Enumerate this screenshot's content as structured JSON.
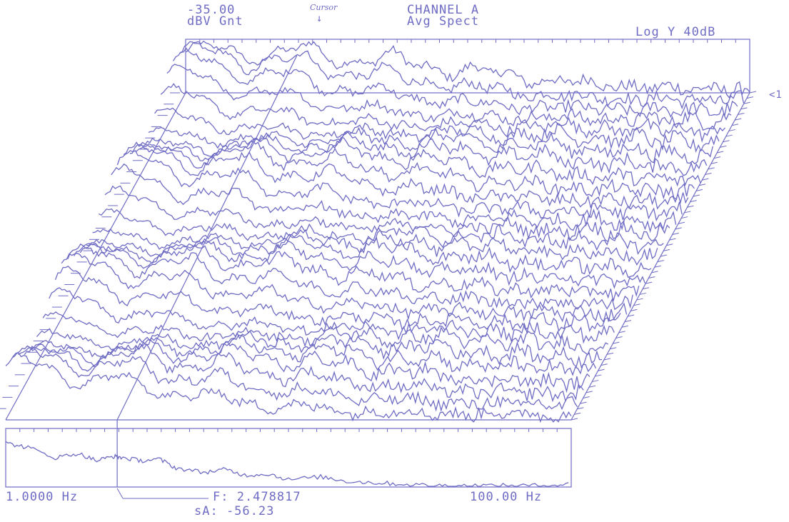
{
  "header": {
    "ref_level": "-35.00",
    "ref_units": "dBV Gnt",
    "cursor_note": "Cursor",
    "channel": "CHANNEL A",
    "measurement": "Avg Spect",
    "scale": "Log Y 40dB",
    "side_marker": "<1"
  },
  "footer": {
    "start_freq": "1.0000 Hz",
    "stop_freq": "100.00 Hz",
    "cursor_freq": "F: 2.478817",
    "cursor_value": "sA: -56.23"
  },
  "colors": {
    "trace": "#6f6cc4",
    "frame": "#6f6cc4",
    "paper": "#ffffff"
  },
  "chart_data": {
    "type": "line",
    "title": "CHANNEL A Avg Spect",
    "x_scale": "log",
    "xlim_hz": [
      1.0,
      100.0
    ],
    "y_scale_db": 40,
    "reference_dbv": -35.0,
    "cursor": {
      "freq_hz": 2.478817,
      "value_dbv": -56.23
    },
    "waterfall_traces": 30,
    "front_spectrum": {
      "freq_hz": [
        1.0,
        1.2,
        1.5,
        1.8,
        2.1,
        2.4,
        2.6,
        3.0,
        3.5,
        4.0,
        5.0,
        6.0,
        7.0,
        8.5,
        10,
        13,
        16,
        20,
        25,
        32,
        40,
        50,
        63,
        80,
        100
      ],
      "value_dbv": [
        -45,
        -48,
        -55,
        -52,
        -57,
        -54,
        -55,
        -57,
        -56,
        -62,
        -65,
        -63,
        -67,
        -66,
        -70,
        -68,
        -71,
        -72,
        -73,
        -74,
        -74,
        -74,
        -74,
        -74,
        -73
      ]
    }
  }
}
